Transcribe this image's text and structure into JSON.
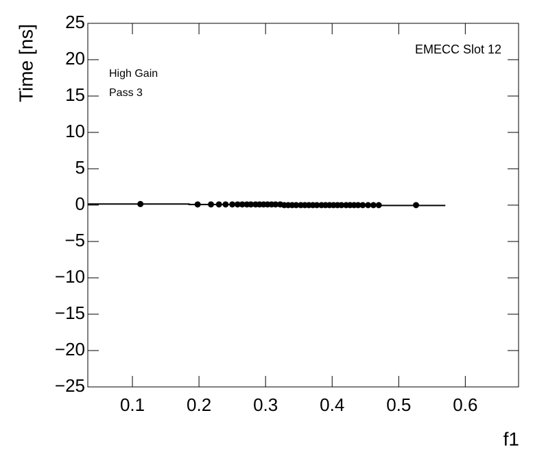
{
  "chart_data": {
    "type": "scatter",
    "xlabel": "f1",
    "ylabel": "Time [ns]",
    "annotations": [
      "EMECC Slot 12",
      "High Gain",
      "Pass 3"
    ],
    "xlim": [
      0.033,
      0.68
    ],
    "ylim": [
      -25,
      25
    ],
    "xticks": [
      0.1,
      0.2,
      0.3,
      0.4,
      0.5,
      0.6
    ],
    "yticks": [
      {
        "value": -25,
        "label": "−25"
      },
      {
        "value": -20,
        "label": "−20"
      },
      {
        "value": -15,
        "label": "−15"
      },
      {
        "value": -10,
        "label": "−10"
      },
      {
        "value": -5,
        "label": "−5"
      },
      0,
      5,
      10,
      15,
      20,
      25
    ],
    "series": [
      {
        "style": "line",
        "color": "#000000",
        "x": [
          0.033,
          0.185,
          0.185,
          0.325,
          0.325,
          0.57
        ],
        "values": [
          0.15,
          0.15,
          0.08,
          0.08,
          -0.05,
          -0.05
        ]
      },
      {
        "style": "markers",
        "color": "#000000",
        "x": [
          0.112,
          0.198,
          0.218,
          0.23,
          0.24,
          0.25,
          0.258,
          0.265,
          0.272,
          0.278,
          0.285,
          0.291,
          0.297,
          0.303,
          0.309,
          0.315,
          0.322,
          0.328,
          0.334,
          0.34,
          0.346,
          0.353,
          0.359,
          0.365,
          0.371,
          0.377,
          0.384,
          0.39,
          0.396,
          0.402,
          0.408,
          0.414,
          0.421,
          0.427,
          0.433,
          0.439,
          0.446,
          0.454,
          0.462,
          0.47,
          0.526
        ],
        "values": [
          0.15,
          0.1,
          0.1,
          0.1,
          0.1,
          0.1,
          0.1,
          0.1,
          0.1,
          0.1,
          0.1,
          0.1,
          0.1,
          0.1,
          0.1,
          0.1,
          0.1,
          0,
          0,
          0,
          0,
          0,
          0,
          0,
          0,
          0,
          0,
          0,
          0,
          0,
          0,
          0,
          0,
          0,
          0,
          0,
          0,
          0,
          0,
          0,
          0
        ]
      }
    ]
  }
}
